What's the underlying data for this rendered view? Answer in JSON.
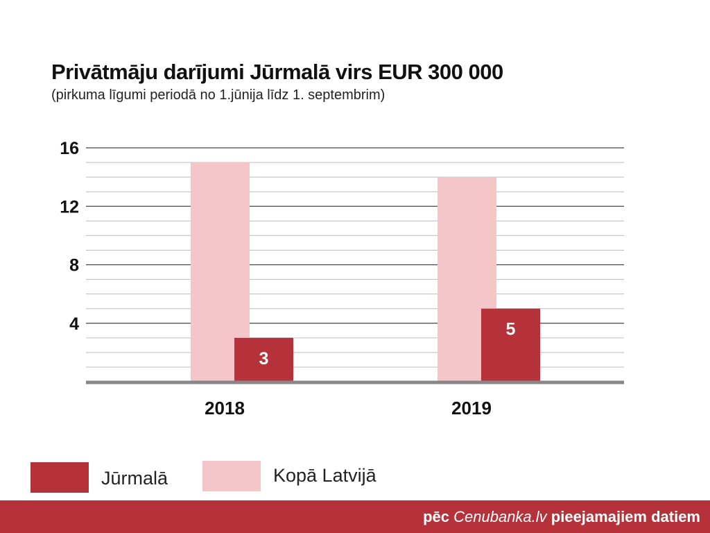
{
  "title": "Privātmāju darījumi Jūrmalā virs EUR 300 000",
  "subtitle": "(pirkuma līgumi periodā no 1.jūnija līdz 1. septembrim)",
  "chart_data": {
    "type": "bar",
    "title": "Privātmāju darījumi Jūrmalā virs EUR 300 000",
    "subtitle": "(pirkuma līgumi periodā no 1.jūnija līdz 1. septembrim)",
    "categories": [
      "2018",
      "2019"
    ],
    "series": [
      {
        "name": "Jūrmalā",
        "values": [
          3,
          5
        ],
        "color": "#b5323a"
      },
      {
        "name": "Kopā Latvijā",
        "values": [
          15,
          14
        ],
        "color": "#f4c6c9"
      }
    ],
    "ylim": [
      0,
      16
    ],
    "yticks": [
      4,
      8,
      12,
      16
    ],
    "grid": true,
    "data_labels": [
      "3",
      "5"
    ],
    "legend": "bottom-left"
  },
  "legend": [
    {
      "label": "Jūrmalā",
      "color": "#b5323a"
    },
    {
      "label": "Kopā Latvijā",
      "color": "#f4c6c9"
    }
  ],
  "footer": {
    "prefix": "pēc ",
    "source": "Cenubanka.lv",
    "suffix": " pieejamajiem datiem"
  }
}
